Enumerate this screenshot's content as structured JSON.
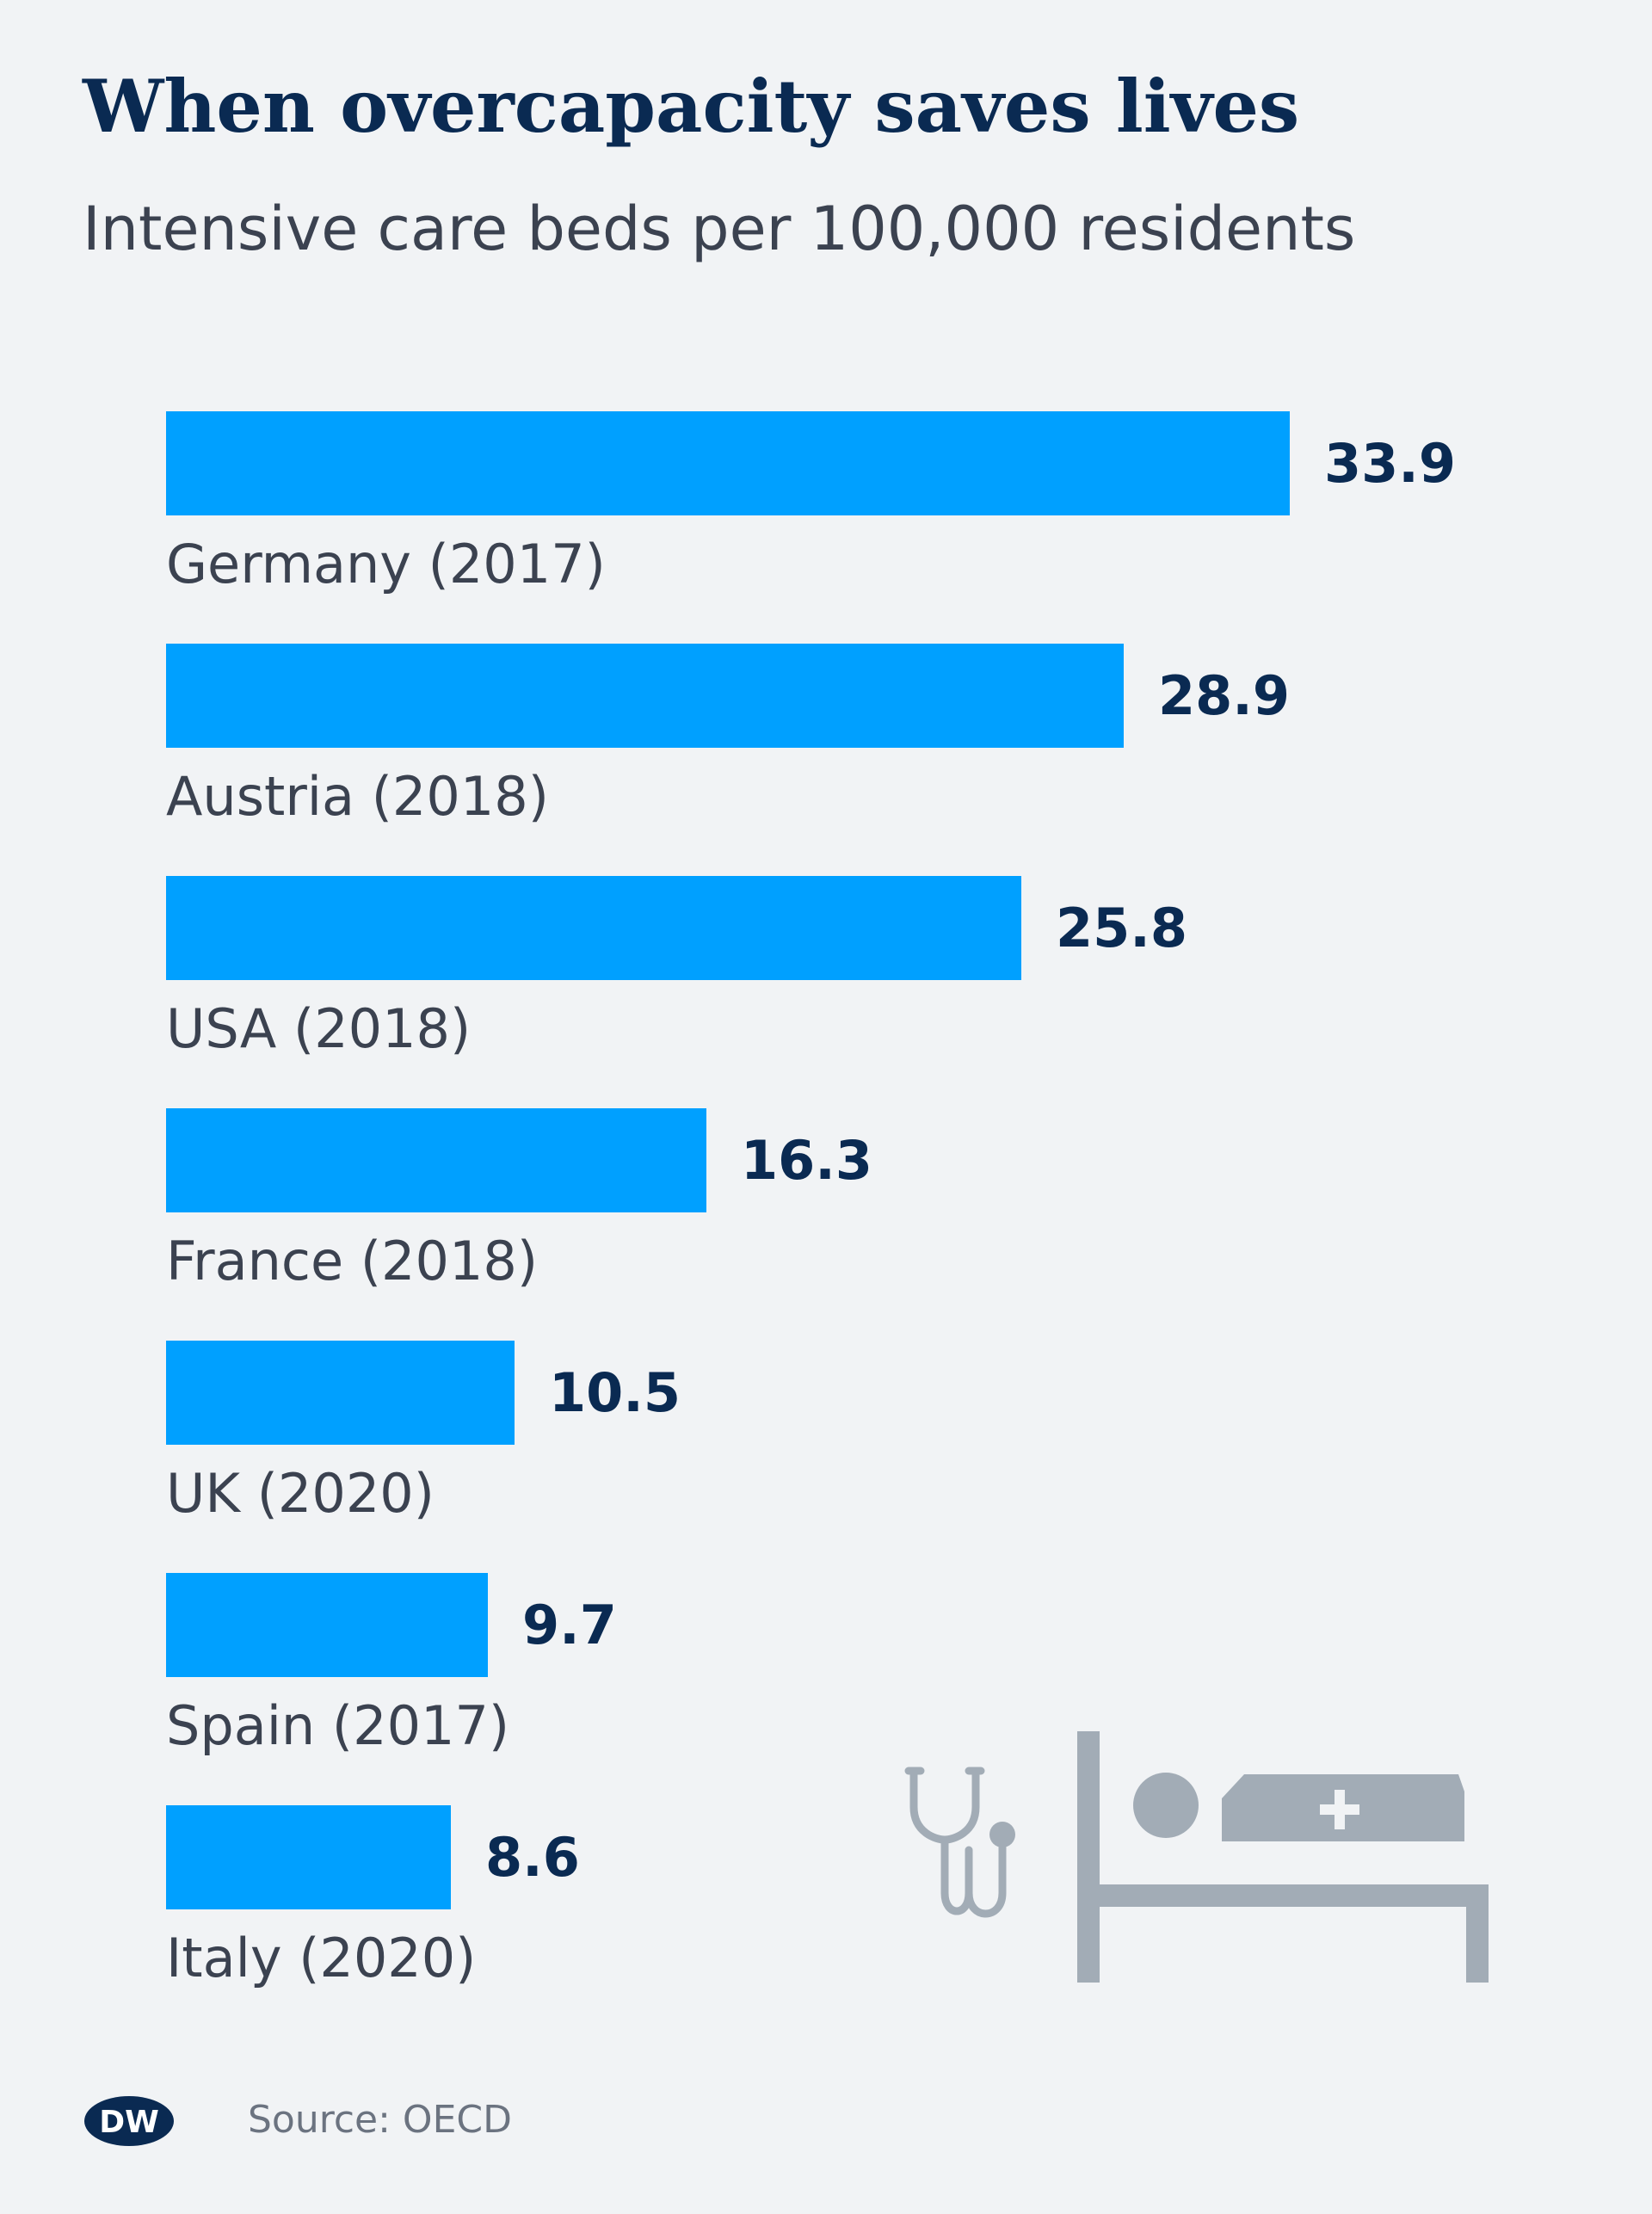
{
  "header": {
    "title": "When overcapacity saves lives",
    "subtitle": "Intensive care beds per 100,000 residents"
  },
  "chart_data": {
    "type": "bar",
    "orientation": "horizontal",
    "title": "When overcapacity saves lives",
    "subtitle": "Intensive care beds per 100,000 residents",
    "categories": [
      "Germany (2017)",
      "Austria (2018)",
      "USA (2018)",
      "France (2018)",
      "UK (2020)",
      "Spain (2017)",
      "Italy (2020)"
    ],
    "values": [
      33.9,
      28.9,
      25.8,
      16.3,
      10.5,
      9.7,
      8.6
    ],
    "value_labels": [
      "33.9",
      "28.9",
      "25.8",
      "16.3",
      "10.5",
      "9.7",
      "8.6"
    ],
    "xlim": [
      0,
      33.9
    ],
    "grid": false,
    "legend": "none",
    "bar_color": "#00a0ff"
  },
  "illustration": {
    "icons": [
      "stethoscope-icon",
      "hospital-bed-icon"
    ],
    "color": "#a2acb6"
  },
  "footer": {
    "logo": "dw-logo",
    "source": "Source: OECD"
  },
  "colors": {
    "background": "#f1f3f5",
    "title": "#0a2a52",
    "text": "#3b4250",
    "value": "#0a2a52",
    "source": "#6b7380"
  }
}
